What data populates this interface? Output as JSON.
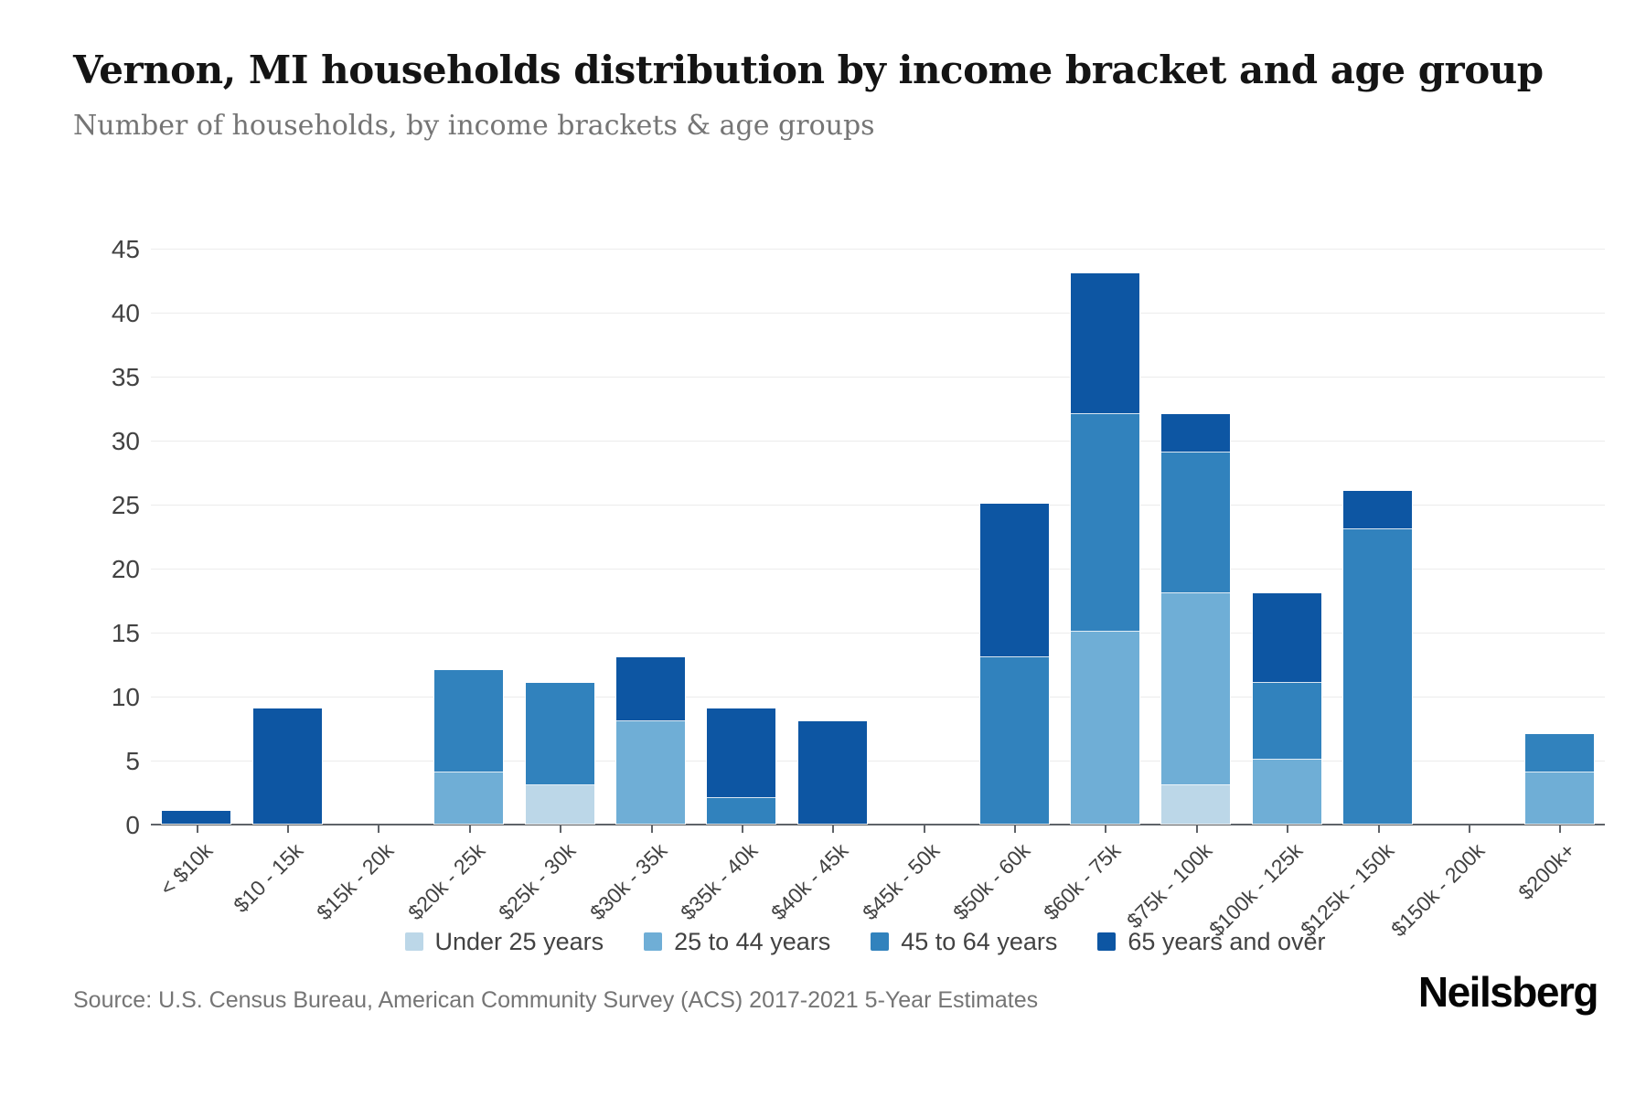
{
  "header": {
    "title": "Vernon, MI households distribution by income bracket and age group",
    "subtitle": "Number of households, by income brackets & age groups"
  },
  "footer": {
    "source": "Source: U.S. Census Bureau, American Community Survey (ACS) 2017-2021 5-Year Estimates",
    "brand": "Neilsberg"
  },
  "chart_data": {
    "type": "bar",
    "stacked": true,
    "title": "Vernon, MI households distribution by income bracket and age group",
    "xlabel": "",
    "ylabel": "Number of households",
    "ylim": [
      0,
      45
    ],
    "ytick_step": 5,
    "grid": true,
    "legend_position": "bottom",
    "categories": [
      "< $10k",
      "$10 - 15k",
      "$15k - 20k",
      "$20k - 25k",
      "$25k - 30k",
      "$30k - 35k",
      "$35k - 40k",
      "$40k - 45k",
      "$45k - 50k",
      "$50k - 60k",
      "$60k - 75k",
      "$75k - 100k",
      "$100k - 125k",
      "$125k - 150k",
      "$150k - 200k",
      "$200k+"
    ],
    "series": [
      {
        "name": "Under 25 years",
        "color": "#BCD7E8",
        "values": [
          0,
          0,
          0,
          0,
          3,
          0,
          0,
          0,
          0,
          0,
          0,
          3,
          0,
          0,
          0,
          0
        ]
      },
      {
        "name": "25 to 44 years",
        "color": "#6FAED6",
        "values": [
          0,
          0,
          0,
          4,
          0,
          8,
          0,
          0,
          0,
          0,
          15,
          15,
          5,
          0,
          0,
          4
        ]
      },
      {
        "name": "45 to 64 years",
        "color": "#3182BD",
        "values": [
          0,
          0,
          0,
          8,
          8,
          0,
          2,
          0,
          0,
          13,
          17,
          11,
          6,
          23,
          0,
          3
        ]
      },
      {
        "name": "65 years and over",
        "color": "#0D56A3",
        "values": [
          1,
          9,
          0,
          0,
          0,
          5,
          7,
          8,
          0,
          12,
          11,
          3,
          7,
          3,
          0,
          0
        ]
      }
    ],
    "totals": [
      1,
      9,
      0,
      12,
      11,
      13,
      9,
      8,
      0,
      25,
      43,
      32,
      18,
      26,
      0,
      7
    ]
  }
}
